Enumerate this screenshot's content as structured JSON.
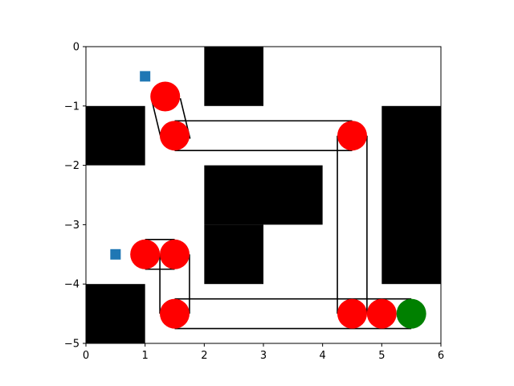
{
  "chart_data": {
    "type": "scatter",
    "title": "",
    "xlabel": "",
    "ylabel": "",
    "xlim": [
      0,
      6
    ],
    "ylim": [
      -5,
      0
    ],
    "grid": false,
    "x_ticks": [
      0,
      1,
      2,
      3,
      4,
      5,
      6
    ],
    "x_tick_labels": [
      "0",
      "1",
      "2",
      "3",
      "4",
      "5",
      "6"
    ],
    "y_ticks": [
      0,
      -1,
      -2,
      -3,
      -4,
      -5
    ],
    "y_tick_labels": [
      "0",
      "−1",
      "−2",
      "−3",
      "−4",
      "−5"
    ],
    "obstacles": [
      {
        "x0": 2,
        "x1": 3,
        "y0": -1,
        "y1": 0
      },
      {
        "x0": 0,
        "x1": 1,
        "y0": -2,
        "y1": -1
      },
      {
        "x0": 5,
        "x1": 6,
        "y0": -4,
        "y1": -1
      },
      {
        "x0": 2,
        "x1": 4,
        "y0": -3,
        "y1": -2
      },
      {
        "x0": 2,
        "x1": 3,
        "y0": -4,
        "y1": -3
      },
      {
        "x0": 0,
        "x1": 1,
        "y0": -5,
        "y1": -4
      }
    ],
    "corridors": [
      [
        [
          1.105,
          -0.87
        ],
        [
          1.27,
          -1.55
        ]
      ],
      [
        [
          1.595,
          -0.87
        ],
        [
          1.76,
          -1.55
        ]
      ],
      [
        [
          1.5,
          -1.25
        ],
        [
          4.5,
          -1.25
        ]
      ],
      [
        [
          1.5,
          -1.75
        ],
        [
          4.5,
          -1.75
        ]
      ],
      [
        [
          4.25,
          -1.5
        ],
        [
          4.25,
          -4.5
        ]
      ],
      [
        [
          4.75,
          -1.5
        ],
        [
          4.75,
          -4.5
        ]
      ],
      [
        [
          1.5,
          -4.25
        ],
        [
          5.5,
          -4.25
        ]
      ],
      [
        [
          1.5,
          -4.75
        ],
        [
          5.5,
          -4.75
        ]
      ],
      [
        [
          1.25,
          -3.5
        ],
        [
          1.25,
          -4.5
        ]
      ],
      [
        [
          1.75,
          -3.5
        ],
        [
          1.75,
          -4.5
        ]
      ],
      [
        [
          1.0,
          -3.25
        ],
        [
          1.5,
          -3.25
        ]
      ],
      [
        [
          1.0,
          -3.75
        ],
        [
          1.5,
          -3.75
        ]
      ]
    ],
    "waypoints": [
      {
        "x": 1.34,
        "y": -0.84
      },
      {
        "x": 1.5,
        "y": -1.5
      },
      {
        "x": 4.5,
        "y": -1.5
      },
      {
        "x": 1.0,
        "y": -3.5
      },
      {
        "x": 1.5,
        "y": -3.5
      },
      {
        "x": 1.5,
        "y": -4.5
      },
      {
        "x": 4.5,
        "y": -4.5
      },
      {
        "x": 5.0,
        "y": -4.5
      }
    ],
    "goal": {
      "x": 5.5,
      "y": -4.5
    },
    "markers": [
      {
        "x": 1.0,
        "y": -0.5
      },
      {
        "x": 0.5,
        "y": -3.5
      }
    ],
    "colors": {
      "obstacle": "#000000",
      "corridor": "#000000",
      "waypoint": "#ff0000",
      "goal": "#008000",
      "marker": "#1f77b4",
      "axes": "#000000",
      "background": "#ffffff"
    }
  }
}
